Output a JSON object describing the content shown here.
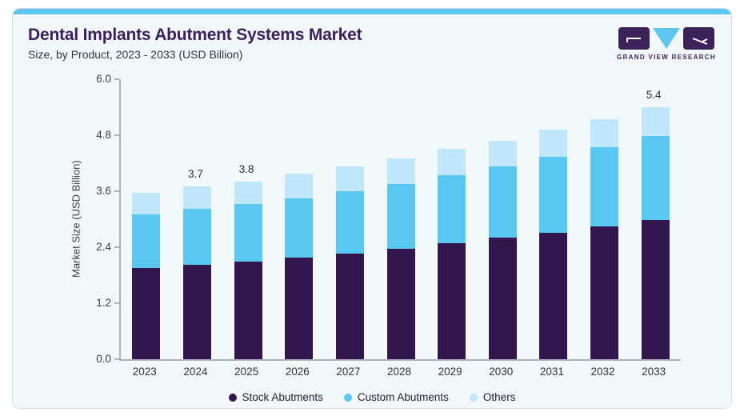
{
  "header": {
    "title": "Dental Implants Abutment Systems Market",
    "subtitle": "Size, by Product, 2023 - 2033 (USD Billion)"
  },
  "logo": {
    "caption": "GRAND VIEW RESEARCH",
    "mark_color": "#3b2359",
    "triangle_color": "#5bc7f0"
  },
  "accent_color": "#5bc7f0",
  "chart_data": {
    "type": "bar",
    "stacked": true,
    "title": "Dental Implants Abutment Systems Market Size, by Product, 2023 - 2033 (USD Billion)",
    "categories": [
      "2023",
      "2024",
      "2025",
      "2026",
      "2027",
      "2028",
      "2029",
      "2030",
      "2031",
      "2032",
      "2033"
    ],
    "series": [
      {
        "name": "Stock Abutments",
        "color": "#33164e",
        "values": [
          1.96,
          2.03,
          2.1,
          2.18,
          2.27,
          2.37,
          2.49,
          2.6,
          2.71,
          2.84,
          2.99
        ]
      },
      {
        "name": "Custom Abutments",
        "color": "#58c7f1",
        "values": [
          1.14,
          1.19,
          1.22,
          1.27,
          1.33,
          1.39,
          1.45,
          1.53,
          1.62,
          1.71,
          1.79
        ]
      },
      {
        "name": "Others",
        "color": "#bfe7f9",
        "values": [
          0.46,
          0.48,
          0.48,
          0.53,
          0.53,
          0.55,
          0.56,
          0.55,
          0.59,
          0.6,
          0.62
        ]
      }
    ],
    "totals": [
      3.56,
      3.7,
      3.8,
      3.98,
      4.13,
      4.31,
      4.5,
      4.68,
      4.92,
      5.15,
      5.4
    ],
    "bar_labels": [
      {
        "category": "2024",
        "text": "3.7"
      },
      {
        "category": "2025",
        "text": "3.8"
      },
      {
        "category": "2033",
        "text": "5.4"
      }
    ],
    "xlabel": "",
    "ylabel": "Market Size (USD Billion)",
    "ylim": [
      0.0,
      6.0
    ],
    "yticks": [
      0.0,
      1.2,
      2.4,
      3.6,
      4.8,
      6.0
    ],
    "grid": false,
    "legend_position": "bottom"
  }
}
